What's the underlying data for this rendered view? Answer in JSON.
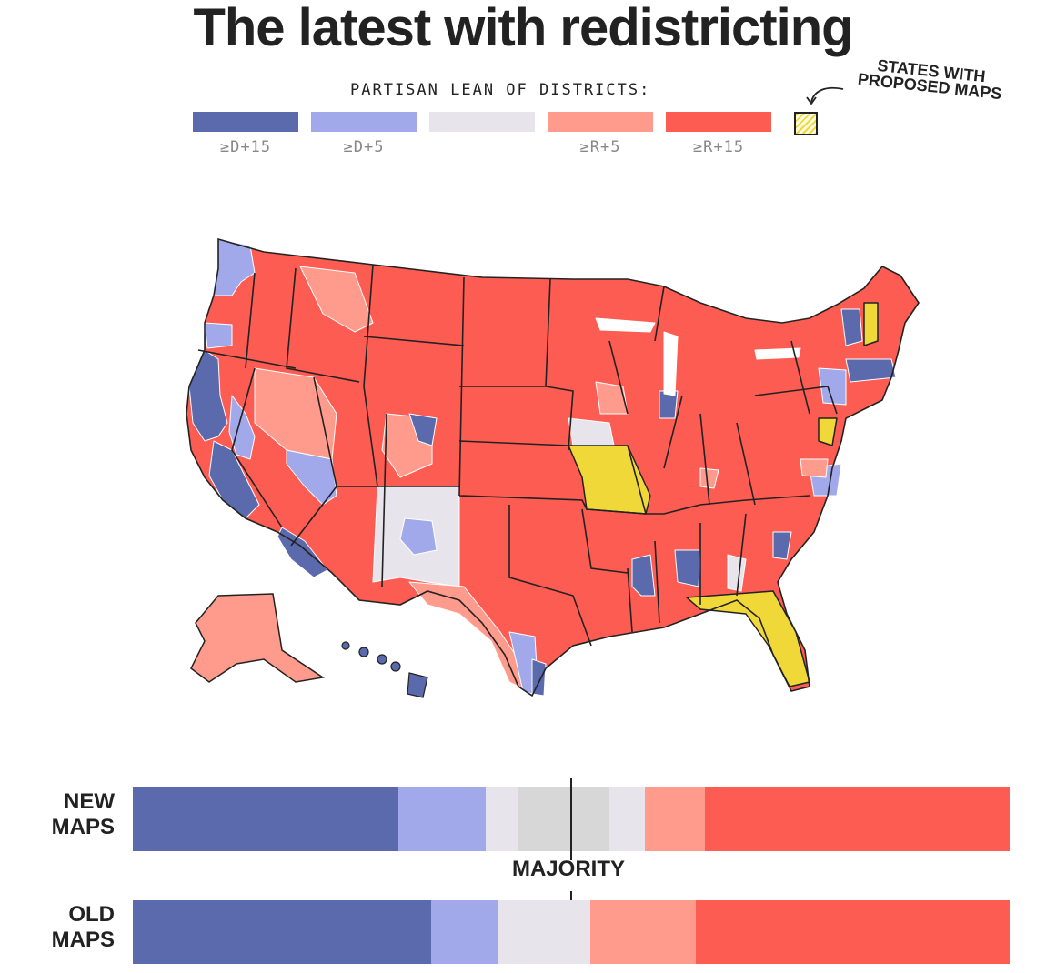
{
  "title": "The latest with redistricting",
  "legend": {
    "title": "PARTISAN LEAN OF DISTRICTS:",
    "items": [
      {
        "label": "≥D+15",
        "color": "#5a6aad"
      },
      {
        "label": "≥D+5",
        "color": "#a1a9ea"
      },
      {
        "label": "",
        "color": "#e8e4ec"
      },
      {
        "label": "≥R+5",
        "color": "#ff9b8d"
      },
      {
        "label": "≥R+15",
        "color": "#fd5c52"
      }
    ],
    "proposed_label": "STATES WITH PROPOSED MAPS",
    "proposed_color": "#f0d838"
  },
  "map": {
    "proposed_states": [
      "Missouri",
      "Florida",
      "New Hampshire",
      "Maryland"
    ],
    "icon": "us-district-map"
  },
  "bars": {
    "majority_label": "MAJORITY",
    "new": {
      "label_line1": "NEW",
      "label_line2": "MAPS",
      "segments": [
        {
          "category": "D+15",
          "share": 0.303,
          "color": "#5a6aad"
        },
        {
          "category": "D+5",
          "share": 0.099,
          "color": "#a1a9ea"
        },
        {
          "category": "tossup",
          "share": 0.037,
          "color": "#e8e4ec"
        },
        {
          "category": "highly competitive",
          "share": 0.105,
          "color": "#d7d7d7"
        },
        {
          "category": "tossup",
          "share": 0.04,
          "color": "#e8e4ec"
        },
        {
          "category": "R+5",
          "share": 0.069,
          "color": "#ff9b8d"
        },
        {
          "category": "R+15",
          "share": 0.347,
          "color": "#fd5c52"
        }
      ]
    },
    "old": {
      "label_line1": "OLD",
      "label_line2": "MAPS",
      "segments": [
        {
          "category": "D+15",
          "share": 0.34,
          "color": "#5a6aad"
        },
        {
          "category": "D+5",
          "share": 0.076,
          "color": "#a1a9ea"
        },
        {
          "category": "tossup",
          "share": 0.106,
          "color": "#e8e4ec"
        },
        {
          "category": "R+5",
          "share": 0.12,
          "color": "#ff9b8d"
        },
        {
          "category": "R+15",
          "share": 0.358,
          "color": "#fd5c52"
        }
      ]
    }
  }
}
